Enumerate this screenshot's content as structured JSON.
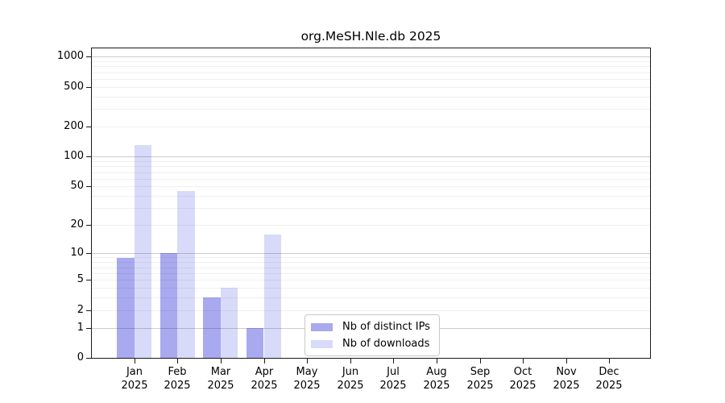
{
  "chart_data": {
    "type": "bar",
    "title": "org.MeSH.Nle.db 2025",
    "x_months": [
      "Jan",
      "Feb",
      "Mar",
      "Apr",
      "May",
      "Jun",
      "Jul",
      "Aug",
      "Sep",
      "Oct",
      "Nov",
      "Dec"
    ],
    "x_year": "2025",
    "series": [
      {
        "name": "Nb of distinct IPs",
        "color": "#a8a9ee",
        "values": [
          9,
          10,
          3,
          1,
          0,
          0,
          0,
          0,
          0,
          0,
          0,
          0
        ]
      },
      {
        "name": "Nb of downloads",
        "color": "#d8daf9",
        "values": [
          130,
          45,
          4,
          16,
          0,
          0,
          0,
          0,
          0,
          0,
          0,
          0
        ]
      }
    ],
    "y_ticks": [
      1000,
      500,
      200,
      100,
      50,
      20,
      10,
      5,
      2,
      1,
      0
    ],
    "y_scale": "log10(value+1)",
    "ylim": [
      0,
      1213
    ],
    "grid": {
      "on": true,
      "major": [
        1,
        10,
        100,
        1000
      ],
      "minor": [
        2,
        3,
        4,
        5,
        6,
        7,
        8,
        9,
        20,
        30,
        40,
        50,
        60,
        70,
        80,
        90,
        200,
        300,
        400,
        500,
        600,
        700,
        800,
        900
      ]
    },
    "legend": {
      "position": "lower center"
    },
    "colors": {
      "frame": "#1a1a1a",
      "background": "#ffffff",
      "legend_border": "#c9c9c9"
    }
  }
}
